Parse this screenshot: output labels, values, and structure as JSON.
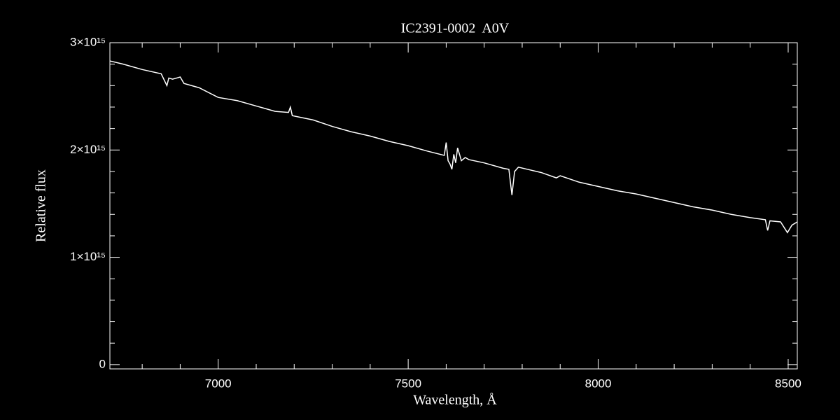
{
  "chart_data": {
    "type": "line",
    "title": "IC2391-0002  A0V",
    "xlabel": "Wavelength, Å",
    "ylabel": "Relative flux",
    "color": "#ffffff",
    "xlim": [
      6715,
      8524
    ],
    "ylim": [
      -40000000000000.0,
      3000000000000000.0
    ],
    "xticks": [
      7000,
      7500,
      8000,
      8500
    ],
    "xminorticks": [
      6800,
      6900,
      7100,
      7200,
      7300,
      7400,
      7600,
      7700,
      7800,
      7900,
      8100,
      8200,
      8300,
      8400
    ],
    "yticks": [
      0,
      {
        "value": 1000000000000000.0,
        "label": "1×10¹⁵"
      },
      {
        "value": 2000000000000000.0,
        "label": "2×10¹⁵"
      },
      {
        "value": 3000000000000000.0,
        "label": "3×10¹⁵"
      }
    ],
    "yminorticks": [
      200000000000000.0,
      400000000000000.0,
      600000000000000.0,
      800000000000000.0,
      1200000000000000.0,
      1400000000000000.0,
      1600000000000000.0,
      1800000000000000.0,
      2200000000000000.0,
      2400000000000000.0,
      2600000000000000.0,
      2800000000000000.0
    ],
    "x": [
      6715,
      6750,
      6800,
      6850,
      6865,
      6870,
      6880,
      6900,
      6910,
      6950,
      7000,
      7050,
      7100,
      7150,
      7185,
      7190,
      7195,
      7250,
      7300,
      7350,
      7400,
      7450,
      7500,
      7550,
      7595,
      7600,
      7605,
      7610,
      7615,
      7620,
      7625,
      7630,
      7640,
      7650,
      7660,
      7700,
      7750,
      7765,
      7773,
      7780,
      7790,
      7850,
      7890,
      7900,
      7950,
      8000,
      8050,
      8100,
      8150,
      8200,
      8250,
      8300,
      8350,
      8400,
      8440,
      8446,
      8452,
      8480,
      8498,
      8510,
      8524
    ],
    "values": [
      2830000000000000.0,
      2800000000000000.0,
      2750000000000000.0,
      2710000000000000.0,
      2600000000000000.0,
      2670000000000000.0,
      2660000000000000.0,
      2680000000000000.0,
      2620000000000000.0,
      2580000000000000.0,
      2490000000000000.0,
      2460000000000000.0,
      2410000000000000.0,
      2360000000000000.0,
      2350000000000000.0,
      2400000000000000.0,
      2320000000000000.0,
      2280000000000000.0,
      2220000000000000.0,
      2170000000000000.0,
      2130000000000000.0,
      2080000000000000.0,
      2040000000000000.0,
      1990000000000000.0,
      1950000000000000.0,
      2070000000000000.0,
      1900000000000000.0,
      1870000000000000.0,
      1820000000000000.0,
      1960000000000000.0,
      1880000000000000.0,
      2020000000000000.0,
      1900000000000000.0,
      1930000000000000.0,
      1910000000000000.0,
      1880000000000000.0,
      1830000000000000.0,
      1820000000000000.0,
      1580000000000000.0,
      1800000000000000.0,
      1840000000000000.0,
      1790000000000000.0,
      1740000000000000.0,
      1760000000000000.0,
      1700000000000000.0,
      1660000000000000.0,
      1620000000000000.0,
      1590000000000000.0,
      1550000000000000.0,
      1510000000000000.0,
      1470000000000000.0,
      1440000000000000.0,
      1400000000000000.0,
      1370000000000000.0,
      1350000000000000.0,
      1250000000000000.0,
      1340000000000000.0,
      1330000000000000.0,
      1230000000000000.0,
      1300000000000000.0,
      1330000000000000.0
    ]
  }
}
